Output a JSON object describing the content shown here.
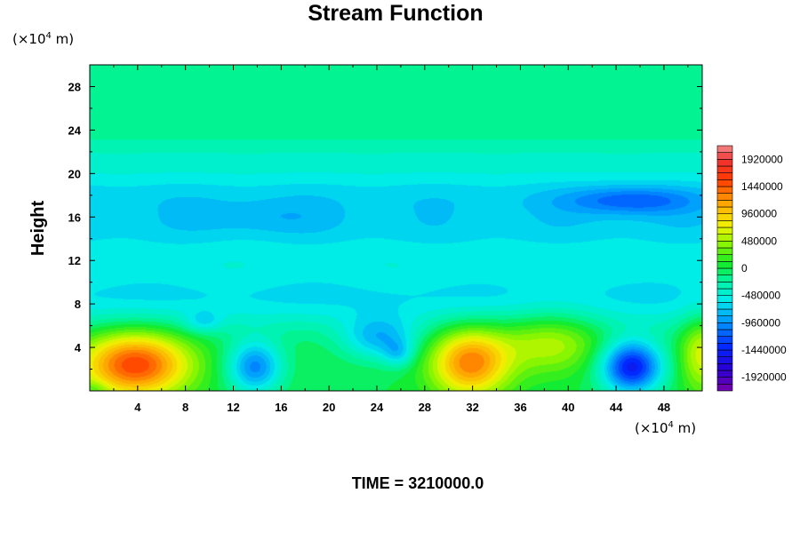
{
  "chart_data": {
    "type": "heatmap",
    "title": "Stream Function",
    "ylabel": "Height",
    "y_unit": {
      "prefix": "(×10",
      "exponent": "4",
      "suffix": " m)"
    },
    "x_unit": {
      "prefix": "(×10",
      "exponent": "4",
      "suffix": " m)"
    },
    "xlim": [
      0,
      51.2
    ],
    "ylim": [
      0,
      30
    ],
    "x_ticks": [
      4,
      8,
      12,
      16,
      20,
      24,
      28,
      32,
      36,
      40,
      44,
      48
    ],
    "y_ticks": [
      4,
      8,
      12,
      16,
      20,
      24,
      28
    ],
    "colorbar": {
      "range": [
        -2160000,
        2160000
      ],
      "step": 120000,
      "labels": [
        "1920000",
        "1440000",
        "960000",
        "480000",
        "0",
        "-480000",
        "-960000",
        "-1440000",
        "-1920000"
      ],
      "label_values": [
        1920000,
        1440000,
        960000,
        480000,
        0,
        -480000,
        -960000,
        -1440000,
        -1920000
      ]
    },
    "field_features": [
      {
        "kind": "high",
        "x": 3.8,
        "y": 2.4,
        "peak": 1450000
      },
      {
        "kind": "high",
        "x": 31.8,
        "y": 2.6,
        "peak": 1250000
      },
      {
        "kind": "high",
        "x": 38.5,
        "y": 4.5,
        "peak": 450000
      },
      {
        "kind": "high",
        "x": 51,
        "y": 3.5,
        "peak": 450000
      },
      {
        "kind": "low",
        "x": 45.3,
        "y": 2.2,
        "peak": -1500000
      },
      {
        "kind": "low",
        "x": 13.8,
        "y": 2.2,
        "peak": -1100000
      },
      {
        "kind": "low",
        "x": 24.5,
        "y": 4.6,
        "peak": -800000
      },
      {
        "kind": "low",
        "x": 45.3,
        "y": 17.5,
        "peak": -850000
      },
      {
        "kind": "low",
        "x": 9.5,
        "y": 6.3,
        "peak": -600000
      }
    ],
    "time_label": "TIME = 3210000.0"
  }
}
